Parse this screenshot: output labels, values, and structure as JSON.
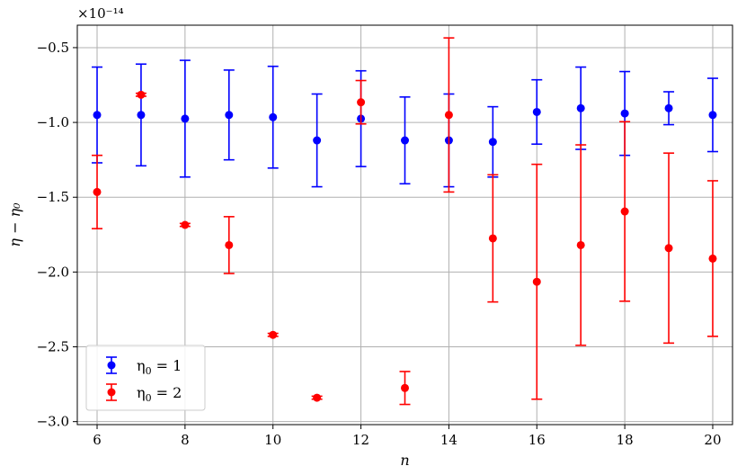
{
  "chart_data": {
    "type": "scatter",
    "xlabel": "n",
    "ylabel": "η − η₀",
    "scale_label": "×10⁻¹⁴",
    "xlim": [
      5.55,
      20.45
    ],
    "ylim": [
      -3.02,
      -0.35
    ],
    "xticks": [
      6,
      8,
      10,
      12,
      14,
      16,
      18,
      20
    ],
    "xtick_labels": [
      "6",
      "8",
      "10",
      "12",
      "14",
      "16",
      "18",
      "20"
    ],
    "yticks": [
      -0.5,
      -1.0,
      -1.5,
      -2.0,
      -2.5,
      -3.0
    ],
    "ytick_labels": [
      "−0.5",
      "−1.0",
      "−1.5",
      "−2.0",
      "−2.5",
      "−3.0"
    ],
    "grid": true,
    "legend_position": "lower-left",
    "series": [
      {
        "name": "η₀ = 1",
        "color": "#0000ff",
        "x": [
          6,
          7,
          8,
          9,
          10,
          11,
          12,
          13,
          14,
          15,
          16,
          17,
          18,
          19,
          20
        ],
        "y": [
          -0.95,
          -0.95,
          -0.975,
          -0.95,
          -0.965,
          -1.12,
          -0.975,
          -1.12,
          -1.12,
          -1.13,
          -0.93,
          -0.905,
          -0.94,
          -0.905,
          -0.95
        ],
        "yerr": [
          0.32,
          0.34,
          0.39,
          0.3,
          0.34,
          0.31,
          0.32,
          0.29,
          0.31,
          0.235,
          0.215,
          0.275,
          0.28,
          0.11,
          0.245
        ]
      },
      {
        "name": "η₀ = 2",
        "color": "#ff0000",
        "x": [
          6,
          7,
          8,
          9,
          10,
          11,
          12,
          13,
          14,
          15,
          16,
          17,
          18,
          19,
          20
        ],
        "y": [
          -1.465,
          -0.815,
          -1.685,
          -1.82,
          -2.42,
          -2.84,
          -0.865,
          -2.775,
          -0.95,
          -1.775,
          -2.065,
          -1.82,
          -1.595,
          -1.84,
          -1.91
        ],
        "yerr": [
          0.245,
          0.01,
          0.01,
          0.19,
          0.01,
          0.01,
          0.145,
          0.11,
          0.515,
          0.425,
          0.785,
          0.67,
          0.6,
          0.635,
          0.52
        ]
      }
    ],
    "legend": [
      {
        "label_left": "η",
        "label_sub": "0",
        "label_right": " = 1",
        "color": "#0000ff"
      },
      {
        "label_left": "η",
        "label_sub": "0",
        "label_right": " = 2",
        "color": "#ff0000"
      }
    ]
  }
}
